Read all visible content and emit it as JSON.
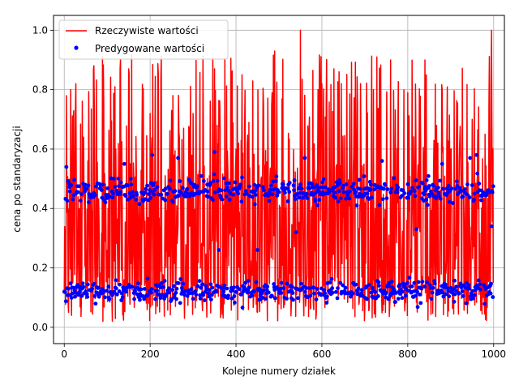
{
  "chart_data": {
    "type": "line",
    "title": "",
    "xlabel": "Kolejne numery działek",
    "ylabel": "cena po standaryzacji",
    "xlim": [
      -25,
      1025
    ],
    "ylim": [
      -0.055,
      1.05
    ],
    "xticks": [
      0,
      200,
      400,
      600,
      800,
      1000
    ],
    "xtick_labels": [
      "0",
      "200",
      "400",
      "600",
      "800",
      "1000"
    ],
    "yticks": [
      0.0,
      0.2,
      0.4,
      0.6,
      0.8,
      1.0
    ],
    "ytick_labels": [
      "0.0",
      "0.2",
      "0.4",
      "0.6",
      "0.8",
      "1.0"
    ],
    "grid": true,
    "legend_position": "top-left",
    "point_count": 1000,
    "series": [
      {
        "name": "Rzeczywiste wartości",
        "kind": "line",
        "color": "#ff0000",
        "value_range": [
          0.0,
          1.0
        ],
        "sampled_points": [
          [
            0,
            0.12
          ],
          [
            5,
            0.78
          ],
          [
            10,
            0.05
          ],
          [
            15,
            0.8
          ],
          [
            20,
            0.15
          ],
          [
            40,
            0.1
          ],
          [
            45,
            0.64
          ],
          [
            55,
            0.56
          ],
          [
            70,
            0.74
          ],
          [
            90,
            0.02
          ],
          [
            120,
            0.6
          ],
          [
            130,
            0.87
          ],
          [
            140,
            0.07
          ],
          [
            150,
            0.87
          ],
          [
            200,
            0.72
          ],
          [
            210,
            0.16
          ],
          [
            250,
            0.73
          ],
          [
            300,
            0.72
          ],
          [
            350,
            0.87
          ],
          [
            400,
            0.6
          ],
          [
            430,
            0.69
          ],
          [
            450,
            0.05
          ],
          [
            490,
            0.93
          ],
          [
            550,
            1.0
          ],
          [
            600,
            0.82
          ],
          [
            640,
            0.86
          ],
          [
            690,
            0.82
          ],
          [
            720,
            0.8
          ],
          [
            760,
            0.9
          ],
          [
            800,
            0.79
          ],
          [
            840,
            0.9
          ],
          [
            880,
            0.8
          ],
          [
            900,
            0.6
          ],
          [
            950,
            0.7
          ],
          [
            980,
            0.65
          ],
          [
            995,
            1.0
          ],
          [
            999,
            0.15
          ]
        ]
      },
      {
        "name": "Predygowane wartości",
        "kind": "points",
        "color": "#0000ff",
        "clusters": [
          {
            "center": 0.12,
            "spread": 0.035
          },
          {
            "center": 0.46,
            "spread": 0.04
          }
        ],
        "outliers": [
          [
            5,
            0.54
          ],
          [
            140,
            0.55
          ],
          [
            205,
            0.58
          ],
          [
            265,
            0.57
          ],
          [
            350,
            0.59
          ],
          [
            560,
            0.57
          ],
          [
            740,
            0.56
          ],
          [
            880,
            0.55
          ],
          [
            945,
            0.57
          ],
          [
            960,
            0.58
          ],
          [
            995,
            0.34
          ],
          [
            820,
            0.33
          ],
          [
            540,
            0.32
          ],
          [
            360,
            0.26
          ],
          [
            450,
            0.26
          ]
        ]
      }
    ]
  }
}
